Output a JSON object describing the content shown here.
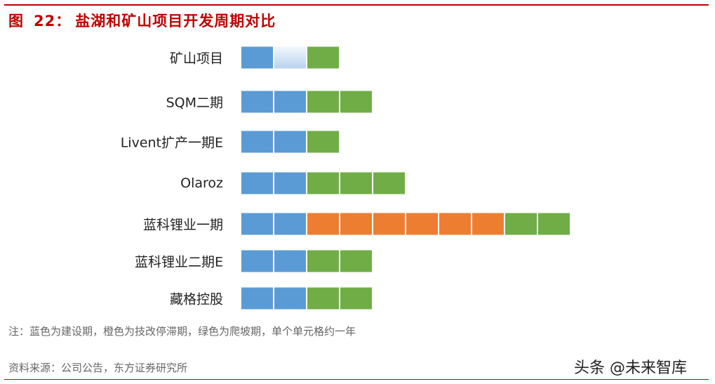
{
  "figure": {
    "number_label": "图",
    "number": "22：",
    "title": "盐湖和矿山项目开发周期对比"
  },
  "note": "注：蓝色为建设期，橙色为技改停滞期，绿色为爬坡期，单个单元格约一年",
  "source": "资料来源：公司公告，东方证券研究所",
  "watermark": "头条 @未来智库",
  "colors": {
    "construction": "#5b9bd5",
    "stagnation": "#ed7d31",
    "rampup": "#70ad47",
    "title": "#c00000"
  },
  "chart_data": {
    "type": "table",
    "title": "盐湖和矿山项目开发周期对比",
    "unit": "单个单元格约一年",
    "legend": [
      {
        "name": "建设期",
        "color": "#5b9bd5"
      },
      {
        "name": "技改停滞期",
        "color": "#ed7d31"
      },
      {
        "name": "爬坡期",
        "color": "#70ad47"
      }
    ],
    "categories": [
      "矿山项目",
      "SQM二期",
      "Livent扩产一期E",
      "Olaroz",
      "蓝科锂业一期",
      "蓝科锂业二期E",
      "藏格控股"
    ],
    "series": [
      {
        "name": "建设期",
        "values": [
          1.5,
          2,
          2,
          2,
          2,
          2,
          2
        ]
      },
      {
        "name": "技改停滞期",
        "values": [
          0,
          0,
          0,
          0,
          6,
          0,
          0
        ]
      },
      {
        "name": "爬坡期",
        "values": [
          1,
          2,
          1,
          3,
          2,
          2,
          2
        ]
      }
    ],
    "rows": [
      {
        "label": "矿山项目",
        "cells": [
          "construction",
          "construction-faded",
          "rampup"
        ]
      },
      {
        "label": "SQM二期",
        "cells": [
          "construction",
          "construction",
          "rampup",
          "rampup"
        ]
      },
      {
        "label": "Livent扩产一期E",
        "cells": [
          "construction",
          "construction",
          "rampup"
        ]
      },
      {
        "label": "Olaroz",
        "cells": [
          "construction",
          "construction",
          "rampup",
          "rampup",
          "rampup"
        ]
      },
      {
        "label": "蓝科锂业一期",
        "cells": [
          "construction",
          "construction",
          "stagnation",
          "stagnation",
          "stagnation",
          "stagnation",
          "stagnation",
          "stagnation",
          "rampup",
          "rampup"
        ]
      },
      {
        "label": "蓝科锂业二期E",
        "cells": [
          "construction",
          "construction",
          "rampup",
          "rampup"
        ]
      },
      {
        "label": "藏格控股",
        "cells": [
          "construction",
          "construction",
          "rampup",
          "rampup"
        ]
      }
    ]
  }
}
